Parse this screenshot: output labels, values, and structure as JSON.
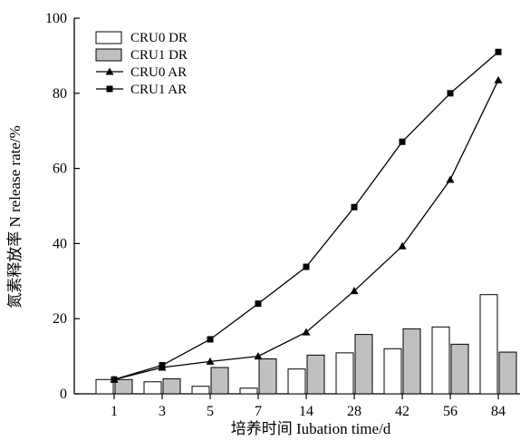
{
  "chart_data": {
    "type": "bar",
    "title": "",
    "xlabel": "培养时间 Iubation time/d",
    "ylabel": "氮素释放率 N release rate/%",
    "ylim": [
      0,
      100
    ],
    "yticks": [
      0,
      20,
      40,
      60,
      80,
      100
    ],
    "categories": [
      "1",
      "3",
      "5",
      "7",
      "14",
      "28",
      "42",
      "56",
      "84"
    ],
    "series": [
      {
        "name": "CRU0 DR",
        "kind": "bar",
        "color": "#ffffff",
        "values": [
          3.8,
          3.2,
          2.0,
          1.5,
          6.6,
          10.9,
          12.0,
          17.8,
          26.4
        ]
      },
      {
        "name": "CRU1 DR",
        "kind": "bar",
        "color": "#c0c0c0",
        "values": [
          3.8,
          4.0,
          7.0,
          9.3,
          10.3,
          15.8,
          17.3,
          13.2,
          11.1
        ]
      },
      {
        "name": "CRU0 AR",
        "kind": "line",
        "marker": "triangle",
        "color": "#000000",
        "values": [
          3.8,
          7.0,
          8.6,
          10.0,
          16.4,
          27.4,
          39.3,
          57.0,
          83.5
        ]
      },
      {
        "name": "CRU1 AR",
        "kind": "line",
        "marker": "square",
        "color": "#000000",
        "values": [
          3.8,
          7.6,
          14.5,
          24.0,
          33.8,
          49.7,
          67.1,
          80.0,
          91.0
        ]
      }
    ],
    "legend_position": "top-left",
    "grid": false
  }
}
